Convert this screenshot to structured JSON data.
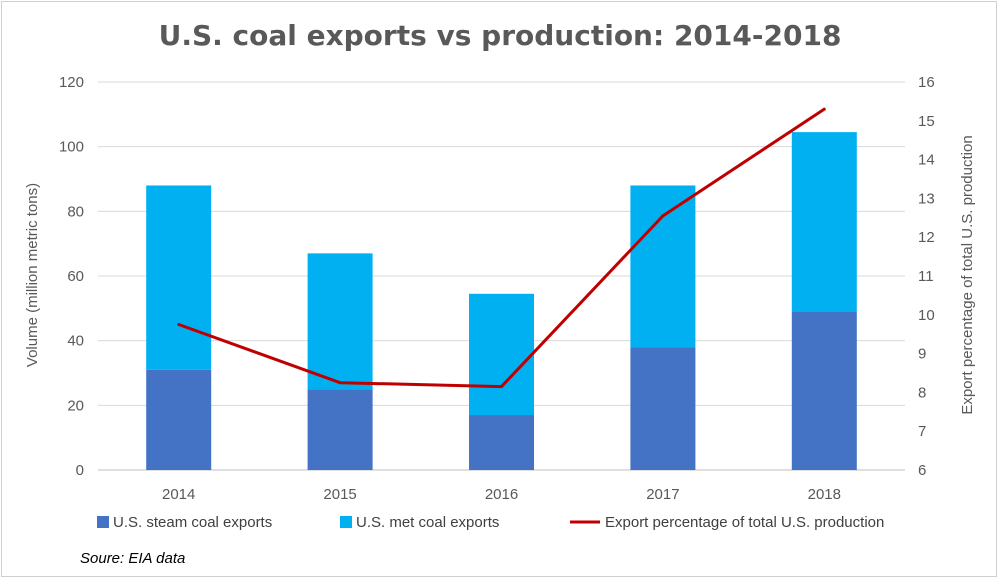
{
  "chart_data": {
    "type": "bar",
    "title": "U.S. coal exports vs production: 2014-2018",
    "categories": [
      "2014",
      "2015",
      "2016",
      "2017",
      "2018"
    ],
    "series": [
      {
        "name": "U.S.  steam coal exports",
        "kind": "stacked-bar",
        "color": "#4472C4",
        "values": [
          31,
          25,
          17,
          38,
          49
        ]
      },
      {
        "name": "U.S. met coal exports",
        "kind": "stacked-bar",
        "color": "#00B0F0",
        "values": [
          57,
          42,
          37.5,
          50,
          55.5
        ]
      },
      {
        "name": "Export percentage of total U.S. production",
        "kind": "line",
        "axis": "right",
        "color": "#C00000",
        "values": [
          9.75,
          8.25,
          8.15,
          12.55,
          15.3
        ]
      }
    ],
    "ylabel": "Volume (million metric tons)",
    "y2label": "Export percentage of total U.S. production",
    "ylim": [
      0,
      120
    ],
    "y2lim": [
      6,
      16
    ],
    "yticks": [
      "0",
      "20",
      "40",
      "60",
      "80",
      "100",
      "120"
    ],
    "y2ticks": [
      "6",
      "7",
      "8",
      "9",
      "10",
      "11",
      "12",
      "13",
      "14",
      "15",
      "16"
    ],
    "grid": true,
    "legend": "bottom"
  },
  "source_note": "Soure:  EIA data"
}
